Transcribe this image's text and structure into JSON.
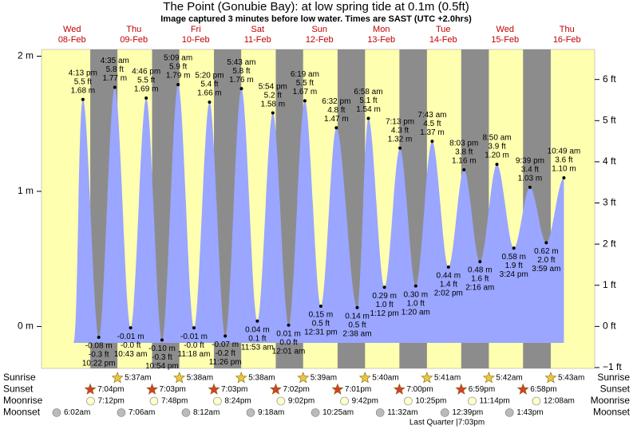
{
  "title": "The Point (Gonubie Bay): at low  spring tide at 0.1m (0.5ft)",
  "subtitle": "Image captured 3 minutes before low water. Times are SAST (UTC +2.0hrs)",
  "chart_data": {
    "type": "area",
    "days": [
      {
        "weekday": "Wed",
        "date": "08-Feb"
      },
      {
        "weekday": "Thu",
        "date": "09-Feb"
      },
      {
        "weekday": "Fri",
        "date": "10-Feb"
      },
      {
        "weekday": "Sat",
        "date": "11-Feb"
      },
      {
        "weekday": "Sun",
        "date": "12-Feb"
      },
      {
        "weekday": "Mon",
        "date": "13-Feb"
      },
      {
        "weekday": "Tue",
        "date": "14-Feb"
      },
      {
        "weekday": "Wed",
        "date": "15-Feb"
      },
      {
        "weekday": "Thu",
        "date": "16-Feb"
      }
    ],
    "dates": [
      "08-Feb",
      "08-Feb",
      "09-Feb",
      "09-Feb",
      "09-Feb",
      "09-Feb",
      "10-Feb",
      "10-Feb",
      "10-Feb",
      "10-Feb",
      "11-Feb",
      "11-Feb",
      "11-Feb",
      "12-Feb",
      "12-Feb",
      "12-Feb",
      "12-Feb",
      "13-Feb",
      "13-Feb",
      "13-Feb",
      "13-Feb",
      "14-Feb",
      "14-Feb",
      "14-Feb",
      "14-Feb",
      "15-Feb",
      "15-Feb",
      "15-Feb",
      "15-Feb",
      "16-Feb",
      "16-Feb"
    ],
    "times": [
      "4:13 pm",
      "10:22 pm",
      "4:35 am",
      "10:43 am",
      "4:46 pm",
      "10:54 pm",
      "5:09 am",
      "11:18 am",
      "5:20 pm",
      "11:26 pm",
      "5:43 am",
      "11:53 am",
      "5:54 pm",
      "12:01 am",
      "6:19 am",
      "12:31 pm",
      "6:32 pm",
      "2:38 am",
      "6:58 am",
      "1:12 pm",
      "7:13 pm",
      "1:20 am",
      "7:43 am",
      "2:02 pm",
      "8:03 pm",
      "2:16 am",
      "8:50 am",
      "3:24 pm",
      "9:39 pm",
      "3:59 am",
      "10:49 am"
    ],
    "values": [
      1.68,
      -0.08,
      1.77,
      -0.01,
      1.69,
      -0.1,
      1.79,
      -0.01,
      1.66,
      -0.07,
      1.76,
      0.04,
      1.58,
      0.01,
      1.67,
      0.15,
      1.47,
      0.14,
      1.54,
      0.29,
      1.32,
      0.3,
      1.37,
      0.44,
      1.16,
      0.48,
      1.2,
      0.58,
      1.03,
      0.62,
      1.1
    ],
    "value_labels": [
      "1.68 m",
      "-0.08 m",
      "1.77 m",
      "-0.01 m",
      "1.69 m",
      "-0.10 m",
      "1.79 m",
      "-0.01 m",
      "1.66 m",
      "-0.07 m",
      "1.76 m",
      "0.04 m",
      "1.58 m",
      "0.01 m",
      "1.67 m",
      "0.15 m",
      "1.47 m",
      "0.14 m",
      "1.54 m",
      "0.29 m",
      "1.32 m",
      "0.30 m",
      "1.37 m",
      "0.44 m",
      "1.16 m",
      "0.48 m",
      "1.20 m",
      "0.58 m",
      "1.03 m",
      "0.62 m",
      "1.10 m"
    ],
    "ft_labels": [
      "5.5 ft",
      "-0.3 ft",
      "5.8 ft",
      "-0.0 ft",
      "5.5 ft",
      "-0.3 ft",
      "5.9 ft",
      "-0.0 ft",
      "5.4 ft",
      "-0.2 ft",
      "5.8 ft",
      "0.1 ft",
      "5.2 ft",
      "0.0 ft",
      "5.5 ft",
      "0.5 ft",
      "4.8 ft",
      "0.5 ft",
      "5.1 ft",
      "1.0 ft",
      "4.3 ft",
      "1.0 ft",
      "4.5 ft",
      "1.4 ft",
      "3.8 ft",
      "1.6 ft",
      "3.9 ft",
      "1.9 ft",
      "3.4 ft",
      "2.0 ft",
      "3.6 ft"
    ],
    "color": "#9aa6ff",
    "day_color": "#ffffb0",
    "night_color": "#8c8c8c",
    "ylim": [
      -0.31,
      2.05
    ],
    "yticks": [
      {
        "value": 0,
        "label": "0 m"
      },
      {
        "value": 1,
        "label": "1 m"
      },
      {
        "value": 2,
        "label": "2 m"
      }
    ],
    "y2lim": [
      -1.02,
      6.73
    ],
    "y2ticks": [
      {
        "value": -1,
        "label": "−1 ft"
      },
      {
        "value": 0,
        "label": "0 ft"
      },
      {
        "value": 1,
        "label": "1 ft"
      },
      {
        "value": 2,
        "label": "2 ft"
      },
      {
        "value": 3,
        "label": "3 ft"
      },
      {
        "value": 4,
        "label": "4 ft"
      },
      {
        "value": 5,
        "label": "5 ft"
      },
      {
        "value": 6,
        "label": "6 ft"
      }
    ]
  },
  "almanac": {
    "rows": [
      {
        "name": "Sunrise",
        "icon": "sunrise",
        "events": [
          {
            "day": "09-Feb",
            "time": "5:37am"
          },
          {
            "day": "10-Feb",
            "time": "5:38am"
          },
          {
            "day": "11-Feb",
            "time": "5:38am"
          },
          {
            "day": "12-Feb",
            "time": "5:39am"
          },
          {
            "day": "13-Feb",
            "time": "5:40am"
          },
          {
            "day": "14-Feb",
            "time": "5:41am"
          },
          {
            "day": "15-Feb",
            "time": "5:42am"
          },
          {
            "day": "16-Feb",
            "time": "5:43am"
          }
        ]
      },
      {
        "name": "Sunset",
        "icon": "sunset",
        "events": [
          {
            "day": "08-Feb",
            "time": "7:04pm"
          },
          {
            "day": "09-Feb",
            "time": "7:03pm"
          },
          {
            "day": "10-Feb",
            "time": "7:03pm"
          },
          {
            "day": "11-Feb",
            "time": "7:02pm"
          },
          {
            "day": "12-Feb",
            "time": "7:01pm"
          },
          {
            "day": "13-Feb",
            "time": "7:00pm"
          },
          {
            "day": "14-Feb",
            "time": "6:59pm"
          },
          {
            "day": "15-Feb",
            "time": "6:58pm"
          }
        ]
      },
      {
        "name": "Moonrise",
        "icon": "moonrise",
        "events": [
          {
            "day": "08-Feb",
            "time": "7:12pm"
          },
          {
            "day": "09-Feb",
            "time": "7:48pm"
          },
          {
            "day": "10-Feb",
            "time": "8:24pm"
          },
          {
            "day": "11-Feb",
            "time": "9:02pm"
          },
          {
            "day": "12-Feb",
            "time": "9:42pm"
          },
          {
            "day": "13-Feb",
            "time": "10:25pm"
          },
          {
            "day": "14-Feb",
            "time": "11:14pm"
          },
          {
            "day": "16-Feb",
            "time": "12:08am"
          }
        ]
      },
      {
        "name": "Moonset",
        "icon": "moonset",
        "events": [
          {
            "day": "08-Feb",
            "time": "6:02am"
          },
          {
            "day": "09-Feb",
            "time": "7:06am"
          },
          {
            "day": "10-Feb",
            "time": "8:12am"
          },
          {
            "day": "11-Feb",
            "time": "9:18am"
          },
          {
            "day": "12-Feb",
            "time": "10:25am"
          },
          {
            "day": "13-Feb",
            "time": "11:32am"
          },
          {
            "day": "14-Feb",
            "time": "12:39pm"
          },
          {
            "day": "15-Feb",
            "time": "1:43pm"
          }
        ]
      }
    ],
    "note": "Last Quarter |7:03pm"
  }
}
